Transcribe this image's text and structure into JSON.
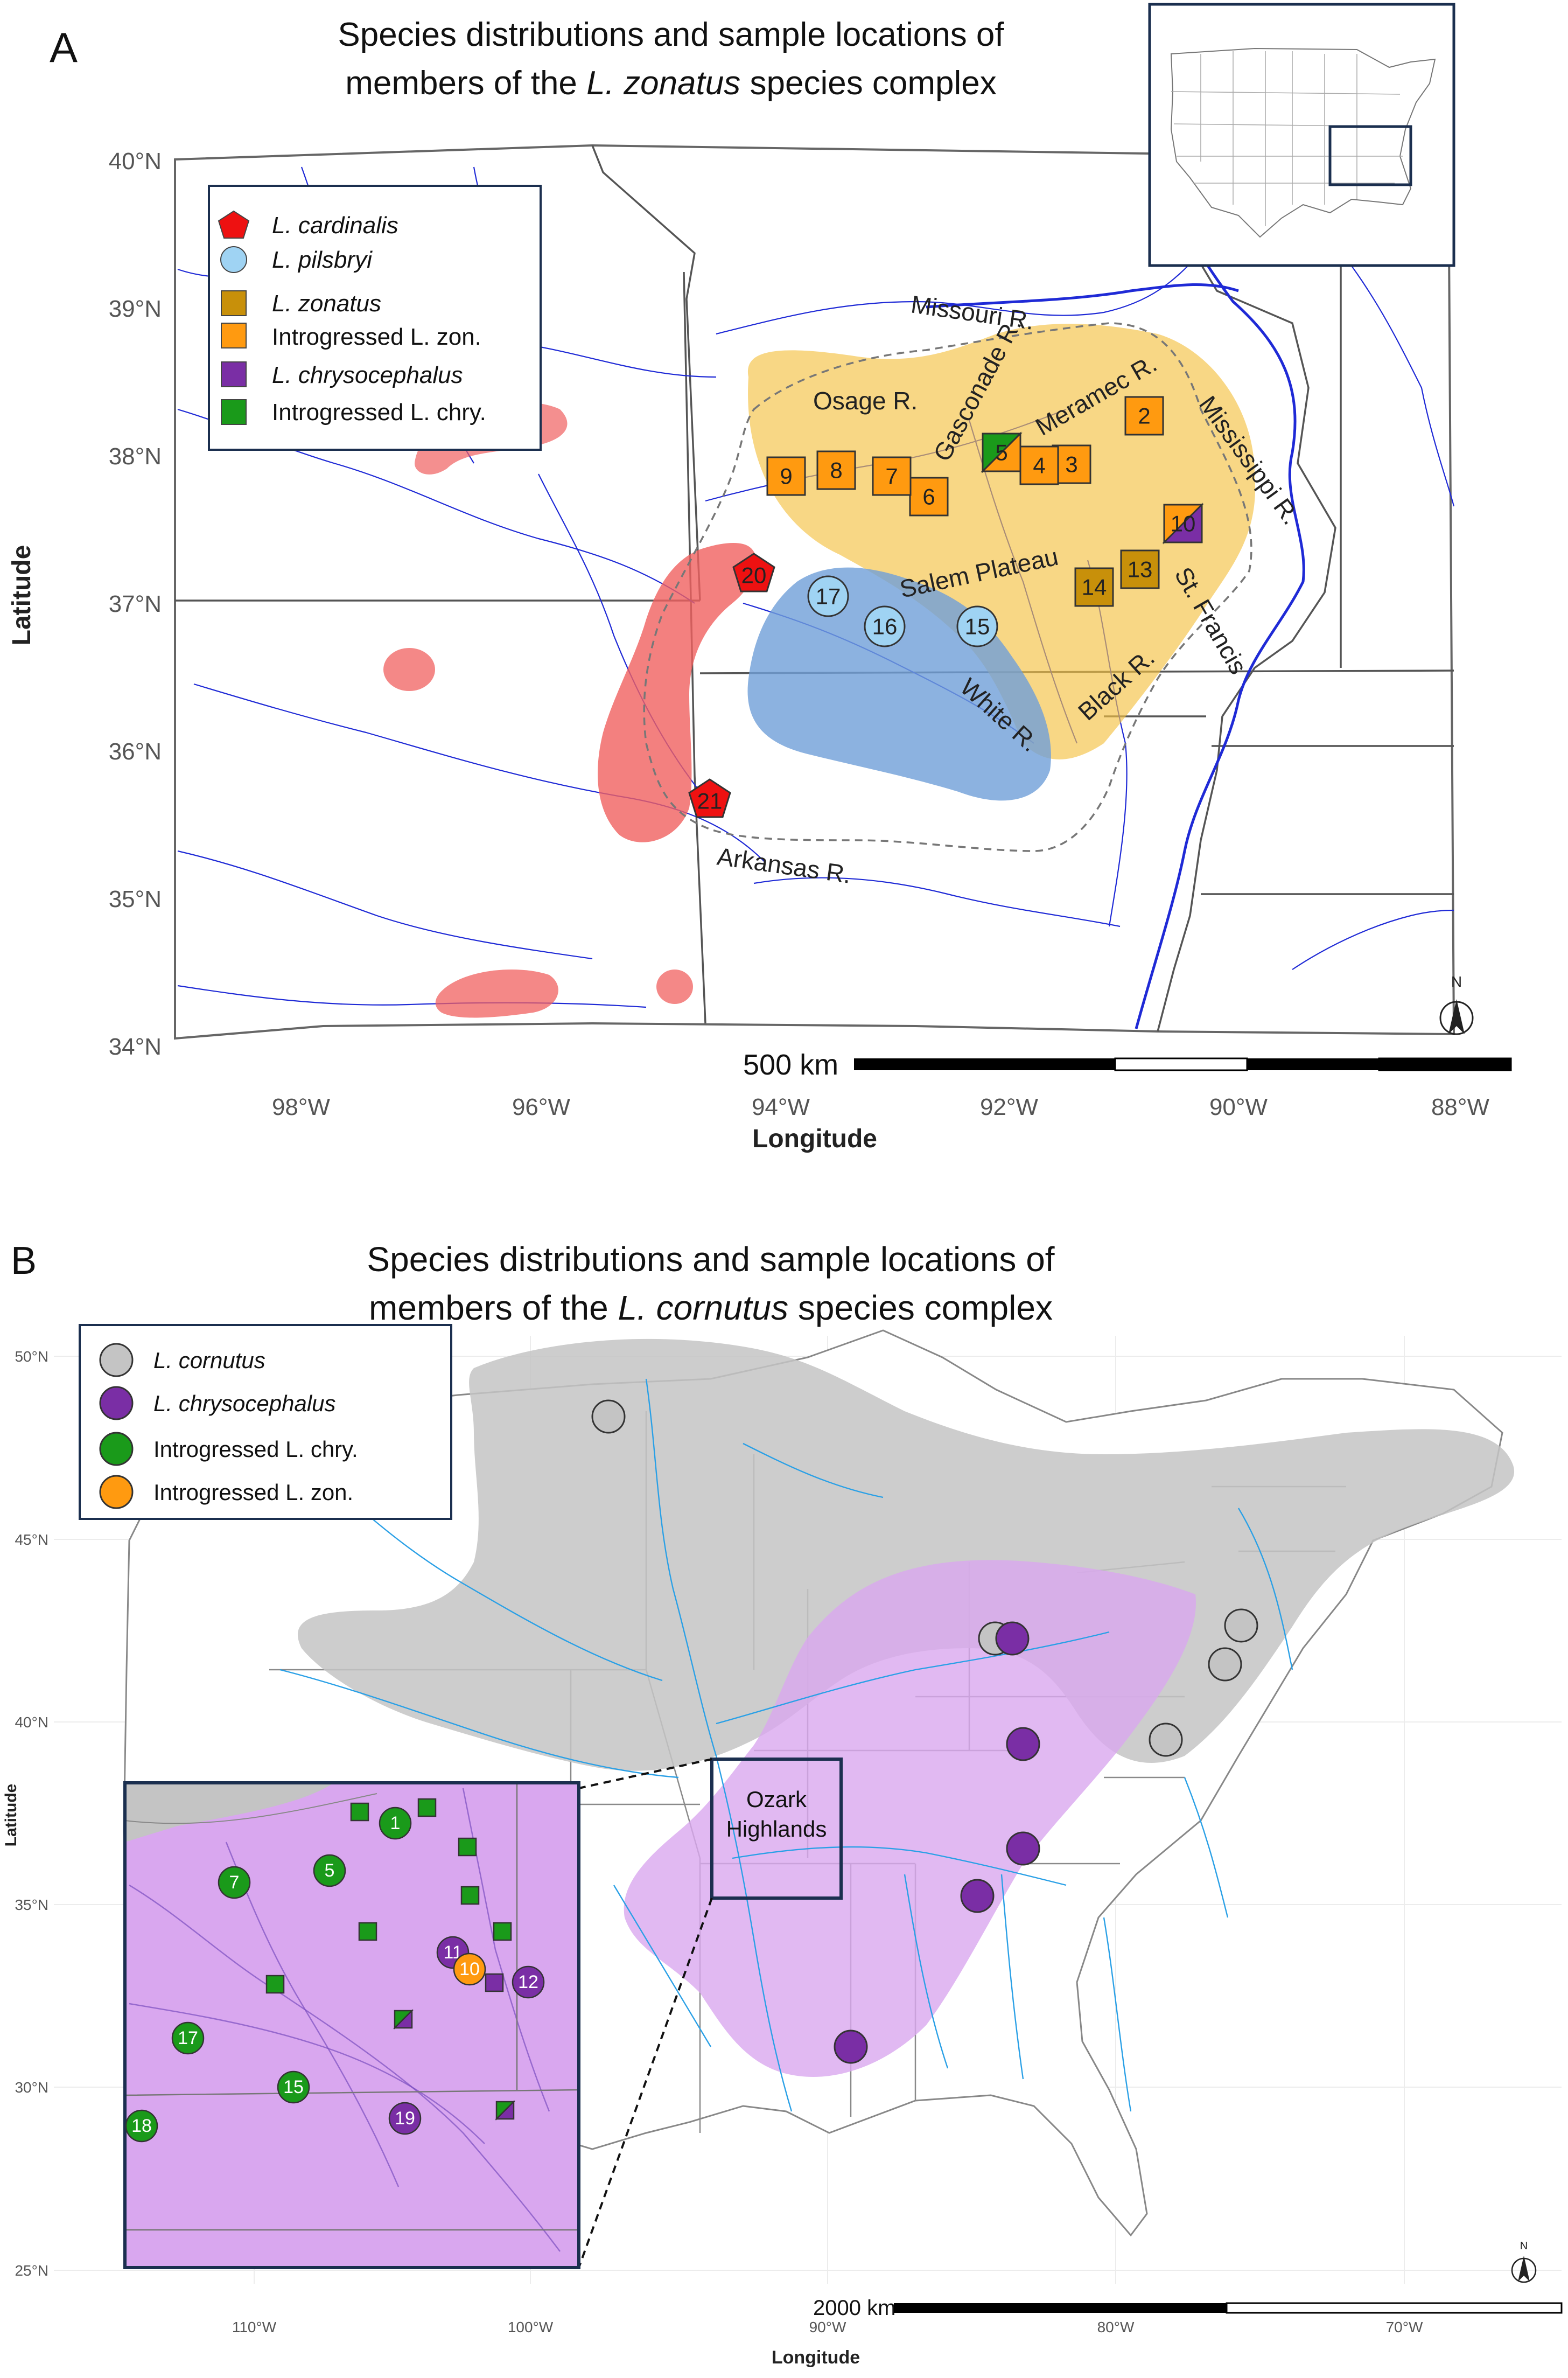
{
  "panelA": {
    "letter": "A",
    "title_line1": "Species distributions and sample locations of",
    "title_line2_pre": "members of the ",
    "title_line2_species": "L. zonatus",
    "title_line2_post": " species complex",
    "ylabel": "Latitude",
    "xlabel": "Longitude",
    "lat_ticks": [
      "40°N",
      "39°N",
      "38°N",
      "37°N",
      "36°N",
      "35°N",
      "34°N"
    ],
    "lon_ticks": [
      "98°W",
      "96°W",
      "94°W",
      "92°W",
      "90°W",
      "88°W"
    ],
    "scale": "500 km",
    "north": "N",
    "legend": [
      {
        "label": "L. cardinalis",
        "italic": true,
        "symbol": "pentagon",
        "color": "#ee1111"
      },
      {
        "label": "L. pilsbryi",
        "italic": true,
        "symbol": "circle",
        "color": "#9fd3f3"
      },
      {
        "label": "L. zonatus",
        "italic": true,
        "symbol": "square",
        "color": "#c8900a"
      },
      {
        "label": "Introgressed L. zon.",
        "italic": false,
        "symbol": "square",
        "color": "#ff9a10"
      },
      {
        "label": "L. chrysocephalus",
        "italic": true,
        "symbol": "square",
        "color": "#7a2ea5"
      },
      {
        "label": "Introgressed L. chry.",
        "italic": false,
        "symbol": "square",
        "color": "#1a9a1a"
      }
    ],
    "rivers": {
      "missouri": "Missouri R.",
      "osage": "Osage R.",
      "gasconade": "Gasconade R.",
      "meramec": "Meramec R.",
      "mississippi": "Mississippi R.",
      "salem": "Salem Plateau",
      "stfrancis": "St. Francis",
      "black": "Black R.",
      "white": "White R.",
      "arkansas": "Arkansas R."
    },
    "sites": [
      "2",
      "3",
      "4",
      "5",
      "6",
      "7",
      "8",
      "9",
      "10",
      "13",
      "14",
      "15",
      "16",
      "17",
      "20",
      "21"
    ]
  },
  "panelB": {
    "letter": "B",
    "title_line1": "Species distributions and sample locations of",
    "title_line2_pre": "members of the ",
    "title_line2_species": "L. cornutus",
    "title_line2_post": " species complex",
    "ylabel": "Latitude",
    "xlabel": "Longitude",
    "lat_ticks": [
      "50°N",
      "45°N",
      "40°N",
      "35°N",
      "30°N",
      "25°N"
    ],
    "lon_ticks": [
      "110°W",
      "100°W",
      "90°W",
      "80°W",
      "70°W"
    ],
    "scale": "2000 km",
    "north": "N",
    "legend": [
      {
        "label": "L. cornutus",
        "italic": true,
        "color": "#c4c4c4"
      },
      {
        "label": "L. chrysocephalus",
        "italic": true,
        "color": "#7a2ea5"
      },
      {
        "label": "Introgressed L. chry.",
        "italic": false,
        "color": "#1a9a1a"
      },
      {
        "label": "Introgressed L. zon.",
        "italic": false,
        "color": "#ff9a10"
      }
    ],
    "ozark_label_1": "Ozark",
    "ozark_label_2": "Highlands",
    "inset_sites": [
      "1",
      "5",
      "7",
      "11",
      "10",
      "12",
      "15",
      "17",
      "18",
      "19"
    ]
  },
  "colors": {
    "cardinalis": "#ee1111",
    "pilsbryi": "#9fd3f3",
    "zonatus": "#c8900a",
    "introgressed_zon": "#ff9a10",
    "chrysocephalus": "#7a2ea5",
    "introgressed_chry": "#1a9a1a",
    "cornutus": "#c4c4c4",
    "frame": "#1b2f4f"
  }
}
